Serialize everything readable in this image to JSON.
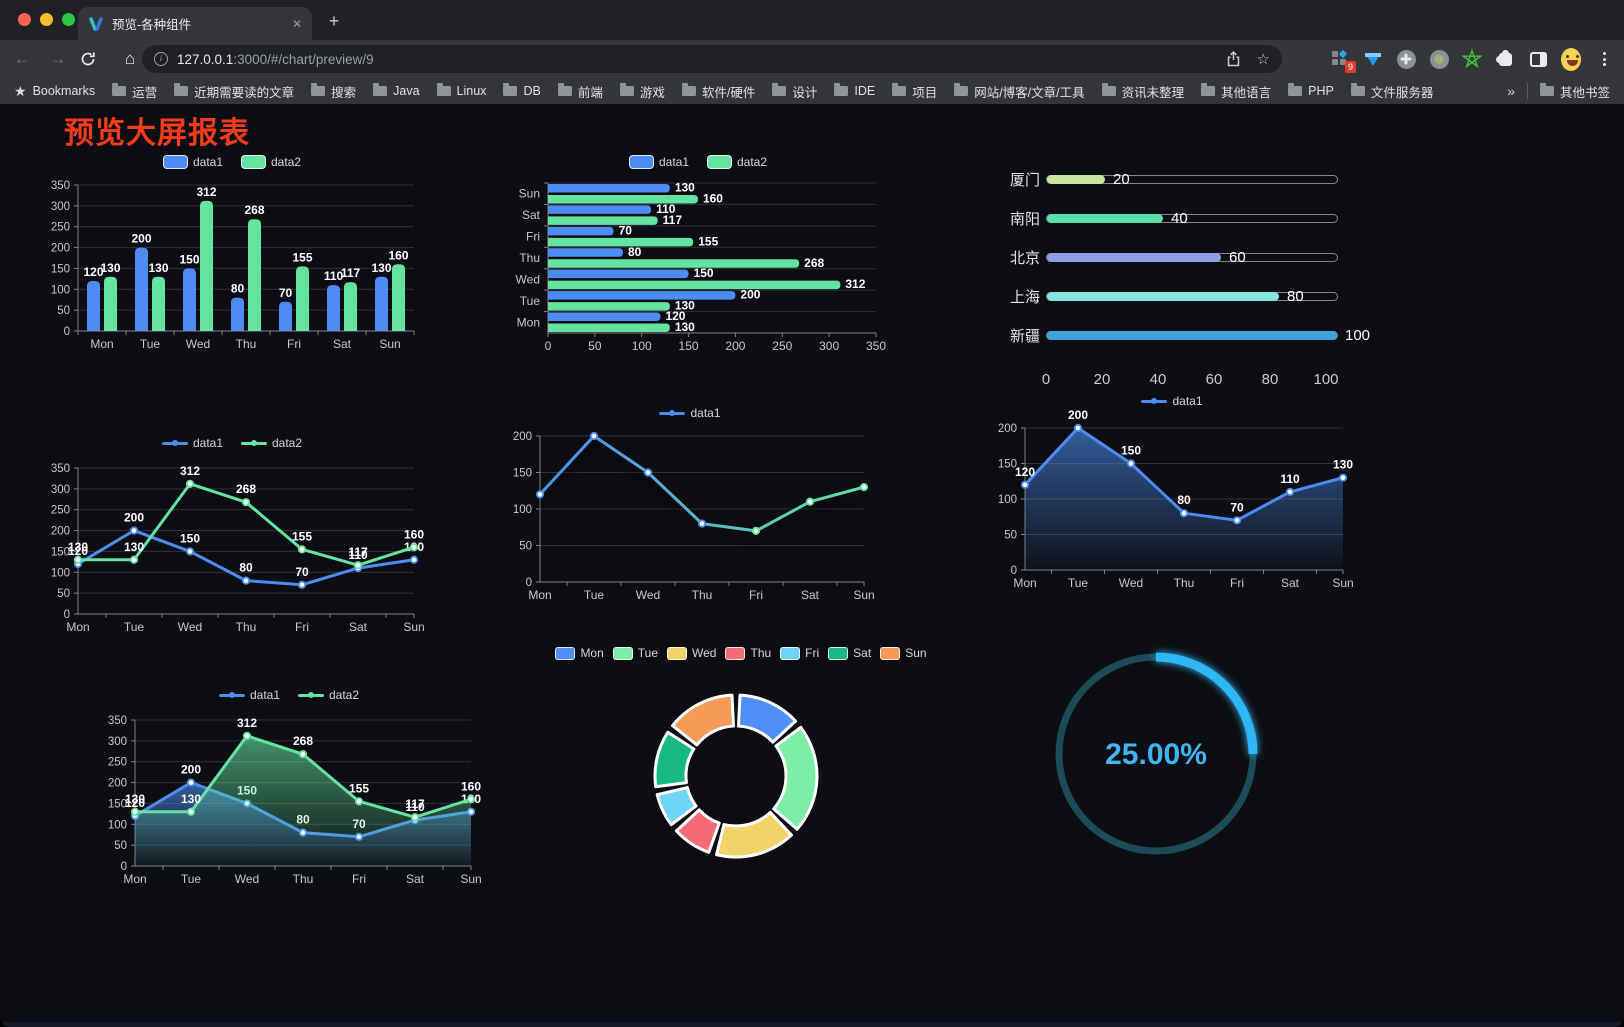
{
  "browser": {
    "tab_title": "预览-各种组件",
    "close_glyph": "✕",
    "new_tab_glyph": "+",
    "url_host": "127.0.0.1",
    "url_rest": ":3000/#/chart/preview/9",
    "share_icon": "share",
    "star_glyph": "☆",
    "bookmarks_label": "Bookmarks",
    "bookmark_folders": [
      "运营",
      "近期需要读的文章",
      "搜索",
      "Java",
      "Linux",
      "DB",
      "前端",
      "游戏",
      "软件/硬件",
      "设计",
      "IDE",
      "项目",
      "网站/博客/文章/工具",
      "资讯未整理",
      "其他语言",
      "PHP",
      "文件服务器"
    ],
    "overflow_glyph": "»",
    "other_bookmarks_label": "其他书签",
    "extension_badge": "9"
  },
  "page": {
    "title": "预览大屏报表",
    "title_color": "#f53b1d",
    "background": "#0d0e13",
    "accent_blue": "#4d8cf2",
    "accent_green": "#64e3a1"
  },
  "chart_data": [
    {
      "id": "bar-vertical",
      "type": "bar",
      "categories": [
        "Mon",
        "Tue",
        "Wed",
        "Thu",
        "Fri",
        "Sat",
        "Sun"
      ],
      "series": [
        {
          "name": "data1",
          "color": "#4d8cf2",
          "values": [
            120,
            200,
            150,
            80,
            70,
            110,
            130
          ]
        },
        {
          "name": "data2",
          "color": "#64e3a1",
          "values": [
            130,
            130,
            312,
            268,
            155,
            117,
            160
          ]
        }
      ],
      "ylim": [
        0,
        350
      ],
      "ystep": 50,
      "labels": true,
      "legend_position": "top"
    },
    {
      "id": "bar-horizontal",
      "type": "bar-horizontal",
      "categories": [
        "Mon",
        "Tue",
        "Wed",
        "Thu",
        "Fri",
        "Sat",
        "Sun"
      ],
      "series": [
        {
          "name": "data1",
          "color": "#4d8cf2",
          "values": [
            120,
            200,
            150,
            80,
            70,
            110,
            130
          ]
        },
        {
          "name": "data2",
          "color": "#64e3a1",
          "values": [
            130,
            130,
            312,
            268,
            155,
            117,
            160
          ]
        }
      ],
      "xlim": [
        0,
        350
      ],
      "xstep": 50,
      "labels": true,
      "legend_position": "top"
    },
    {
      "id": "progress-bars",
      "type": "bar-horizontal",
      "items": [
        {
          "label": "厦门",
          "value": 20,
          "color": "#c8e79c"
        },
        {
          "label": "南阳",
          "value": 40,
          "color": "#59e0ac"
        },
        {
          "label": "北京",
          "value": 60,
          "color": "#8f9ee6"
        },
        {
          "label": "上海",
          "value": 80,
          "color": "#86e3e0"
        },
        {
          "label": "新疆",
          "value": 100,
          "color": "#3da4d9"
        }
      ],
      "xlim": [
        0,
        100
      ],
      "xticks": [
        0,
        20,
        40,
        60,
        80,
        100
      ]
    },
    {
      "id": "line-dual",
      "type": "line",
      "categories": [
        "Mon",
        "Tue",
        "Wed",
        "Thu",
        "Fri",
        "Sat",
        "Sun"
      ],
      "series": [
        {
          "name": "data1",
          "color": "#4d8cf2",
          "values": [
            120,
            200,
            150,
            80,
            70,
            110,
            130
          ]
        },
        {
          "name": "data2",
          "color": "#64e3a1",
          "values": [
            130,
            130,
            312,
            268,
            155,
            117,
            160
          ]
        }
      ],
      "ylim": [
        0,
        350
      ],
      "ystep": 50,
      "labels": true
    },
    {
      "id": "line-gradient",
      "type": "line",
      "categories": [
        "Mon",
        "Tue",
        "Wed",
        "Thu",
        "Fri",
        "Sat",
        "Sun"
      ],
      "series": [
        {
          "name": "data1",
          "color": "#4d8cf2",
          "color2": "#64e3a1",
          "values": [
            120,
            200,
            150,
            80,
            70,
            110,
            130
          ]
        }
      ],
      "ylim": [
        0,
        200
      ],
      "ystep": 50,
      "labels": false,
      "shadow": true
    },
    {
      "id": "area-single",
      "type": "area",
      "categories": [
        "Mon",
        "Tue",
        "Wed",
        "Thu",
        "Fri",
        "Sat",
        "Sun"
      ],
      "series": [
        {
          "name": "data1",
          "color": "#4d8cf2",
          "fill": true,
          "values": [
            120,
            200,
            150,
            80,
            70,
            110,
            130
          ]
        }
      ],
      "ylim": [
        0,
        200
      ],
      "ystep": 50,
      "labels": true
    },
    {
      "id": "area-dual",
      "type": "area",
      "categories": [
        "Mon",
        "Tue",
        "Wed",
        "Thu",
        "Fri",
        "Sat",
        "Sun"
      ],
      "series": [
        {
          "name": "data1",
          "color": "#4d8cf2",
          "fill": true,
          "values": [
            120,
            200,
            150,
            80,
            70,
            110,
            130
          ]
        },
        {
          "name": "data2",
          "color": "#64e3a1",
          "fill": true,
          "values": [
            130,
            130,
            312,
            268,
            155,
            117,
            160
          ]
        }
      ],
      "ylim": [
        0,
        350
      ],
      "ystep": 50,
      "labels": true
    },
    {
      "id": "donut",
      "type": "pie",
      "categories": [
        "Mon",
        "Tue",
        "Wed",
        "Thu",
        "Fri",
        "Sat",
        "Sun"
      ],
      "values": [
        120,
        200,
        150,
        80,
        70,
        110,
        130
      ],
      "colors": [
        "#4e8ef5",
        "#7beda6",
        "#f2d368",
        "#f56c77",
        "#6fd5f7",
        "#16b97f",
        "#f59a57"
      ]
    },
    {
      "id": "gauge",
      "type": "gauge",
      "value": 25,
      "display": "25.00%",
      "color": "#2fb6f5",
      "track": "#1c4a56",
      "text_color": "#41b5f2"
    }
  ]
}
